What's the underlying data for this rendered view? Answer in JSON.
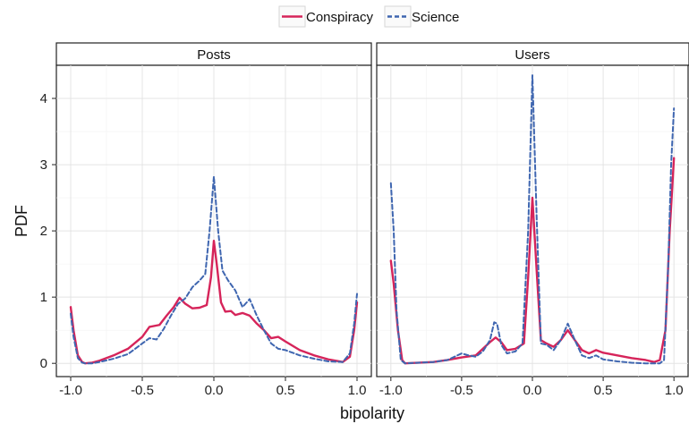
{
  "chart_data": {
    "type": "line",
    "xlabel": "bipolarity",
    "ylabel": "PDF",
    "xlim": [
      -1.1,
      1.1
    ],
    "ylim": [
      -0.2,
      4.5
    ],
    "x_ticks": [
      -1.0,
      -0.5,
      0.0,
      0.5,
      1.0
    ],
    "x_tick_labels": [
      "-1.0",
      "-0.5",
      "0.0",
      "0.5",
      "1.0"
    ],
    "y_ticks": [
      0,
      1,
      2,
      3,
      4
    ],
    "y_tick_labels": [
      "0",
      "1",
      "2",
      "3",
      "4"
    ],
    "grid": true,
    "legend": {
      "position": "top",
      "entries": [
        {
          "name": "Conspiracy",
          "color": "#d6245a",
          "style": "solid"
        },
        {
          "name": "Science",
          "color": "#3f66b0",
          "style": "dashed"
        }
      ]
    },
    "panels": [
      {
        "title": "Posts",
        "series": [
          {
            "name": "Conspiracy",
            "color": "#d6245a",
            "style": "solid",
            "points": [
              [
                -1.0,
                0.85
              ],
              [
                -0.98,
                0.5
              ],
              [
                -0.95,
                0.12
              ],
              [
                -0.92,
                0.02
              ],
              [
                -0.9,
                0.0
              ],
              [
                -0.85,
                0.01
              ],
              [
                -0.8,
                0.04
              ],
              [
                -0.7,
                0.12
              ],
              [
                -0.6,
                0.22
              ],
              [
                -0.5,
                0.4
              ],
              [
                -0.45,
                0.55
              ],
              [
                -0.38,
                0.58
              ],
              [
                -0.33,
                0.72
              ],
              [
                -0.28,
                0.85
              ],
              [
                -0.24,
                0.99
              ],
              [
                -0.2,
                0.9
              ],
              [
                -0.15,
                0.83
              ],
              [
                -0.1,
                0.84
              ],
              [
                -0.05,
                0.88
              ],
              [
                -0.02,
                1.3
              ],
              [
                0.0,
                1.85
              ],
              [
                0.02,
                1.5
              ],
              [
                0.05,
                0.92
              ],
              [
                0.08,
                0.78
              ],
              [
                0.12,
                0.79
              ],
              [
                0.15,
                0.73
              ],
              [
                0.2,
                0.76
              ],
              [
                0.25,
                0.72
              ],
              [
                0.3,
                0.6
              ],
              [
                0.35,
                0.5
              ],
              [
                0.4,
                0.38
              ],
              [
                0.45,
                0.4
              ],
              [
                0.5,
                0.33
              ],
              [
                0.6,
                0.2
              ],
              [
                0.7,
                0.12
              ],
              [
                0.8,
                0.06
              ],
              [
                0.9,
                0.02
              ],
              [
                0.95,
                0.1
              ],
              [
                0.98,
                0.5
              ],
              [
                1.0,
                0.92
              ]
            ]
          },
          {
            "name": "Science",
            "color": "#3f66b0",
            "style": "dashed",
            "points": [
              [
                -1.0,
                0.75
              ],
              [
                -0.98,
                0.4
              ],
              [
                -0.95,
                0.08
              ],
              [
                -0.92,
                0.01
              ],
              [
                -0.9,
                0.0
              ],
              [
                -0.85,
                0.0
              ],
              [
                -0.8,
                0.02
              ],
              [
                -0.7,
                0.07
              ],
              [
                -0.6,
                0.14
              ],
              [
                -0.5,
                0.3
              ],
              [
                -0.45,
                0.38
              ],
              [
                -0.4,
                0.36
              ],
              [
                -0.35,
                0.52
              ],
              [
                -0.3,
                0.72
              ],
              [
                -0.25,
                0.9
              ],
              [
                -0.2,
                0.98
              ],
              [
                -0.15,
                1.15
              ],
              [
                -0.1,
                1.25
              ],
              [
                -0.06,
                1.35
              ],
              [
                -0.03,
                2.0
              ],
              [
                0.0,
                2.82
              ],
              [
                0.03,
                2.0
              ],
              [
                0.06,
                1.4
              ],
              [
                0.1,
                1.25
              ],
              [
                0.15,
                1.1
              ],
              [
                0.2,
                0.85
              ],
              [
                0.25,
                0.97
              ],
              [
                0.3,
                0.72
              ],
              [
                0.35,
                0.5
              ],
              [
                0.4,
                0.3
              ],
              [
                0.45,
                0.22
              ],
              [
                0.5,
                0.2
              ],
              [
                0.6,
                0.12
              ],
              [
                0.7,
                0.07
              ],
              [
                0.8,
                0.03
              ],
              [
                0.9,
                0.02
              ],
              [
                0.95,
                0.15
              ],
              [
                0.98,
                0.6
              ],
              [
                1.0,
                1.05
              ]
            ]
          }
        ]
      },
      {
        "title": "Users",
        "series": [
          {
            "name": "Conspiracy",
            "color": "#d6245a",
            "style": "solid",
            "points": [
              [
                -1.0,
                1.55
              ],
              [
                -0.98,
                1.2
              ],
              [
                -0.95,
                0.5
              ],
              [
                -0.92,
                0.05
              ],
              [
                -0.9,
                0.0
              ],
              [
                -0.8,
                0.01
              ],
              [
                -0.7,
                0.02
              ],
              [
                -0.6,
                0.05
              ],
              [
                -0.5,
                0.09
              ],
              [
                -0.4,
                0.12
              ],
              [
                -0.35,
                0.22
              ],
              [
                -0.3,
                0.32
              ],
              [
                -0.26,
                0.39
              ],
              [
                -0.22,
                0.32
              ],
              [
                -0.18,
                0.2
              ],
              [
                -0.12,
                0.22
              ],
              [
                -0.06,
                0.3
              ],
              [
                -0.03,
                1.3
              ],
              [
                0.0,
                2.5
              ],
              [
                0.03,
                1.4
              ],
              [
                0.06,
                0.35
              ],
              [
                0.1,
                0.3
              ],
              [
                0.15,
                0.25
              ],
              [
                0.2,
                0.35
              ],
              [
                0.25,
                0.5
              ],
              [
                0.3,
                0.35
              ],
              [
                0.35,
                0.2
              ],
              [
                0.4,
                0.15
              ],
              [
                0.45,
                0.2
              ],
              [
                0.5,
                0.16
              ],
              [
                0.6,
                0.12
              ],
              [
                0.7,
                0.08
              ],
              [
                0.8,
                0.05
              ],
              [
                0.86,
                0.02
              ],
              [
                0.9,
                0.05
              ],
              [
                0.94,
                0.5
              ],
              [
                0.97,
                2.0
              ],
              [
                1.0,
                3.1
              ]
            ]
          },
          {
            "name": "Science",
            "color": "#3f66b0",
            "style": "dashed",
            "points": [
              [
                -1.0,
                2.72
              ],
              [
                -0.98,
                2.0
              ],
              [
                -0.96,
                0.8
              ],
              [
                -0.93,
                0.05
              ],
              [
                -0.9,
                0.0
              ],
              [
                -0.8,
                0.01
              ],
              [
                -0.7,
                0.02
              ],
              [
                -0.6,
                0.05
              ],
              [
                -0.5,
                0.15
              ],
              [
                -0.45,
                0.12
              ],
              [
                -0.4,
                0.1
              ],
              [
                -0.35,
                0.18
              ],
              [
                -0.3,
                0.35
              ],
              [
                -0.27,
                0.62
              ],
              [
                -0.25,
                0.6
              ],
              [
                -0.22,
                0.28
              ],
              [
                -0.18,
                0.15
              ],
              [
                -0.12,
                0.18
              ],
              [
                -0.07,
                0.3
              ],
              [
                -0.03,
                2.0
              ],
              [
                0.0,
                4.35
              ],
              [
                0.03,
                2.2
              ],
              [
                0.06,
                0.3
              ],
              [
                0.1,
                0.28
              ],
              [
                0.15,
                0.2
              ],
              [
                0.2,
                0.35
              ],
              [
                0.25,
                0.6
              ],
              [
                0.3,
                0.35
              ],
              [
                0.35,
                0.12
              ],
              [
                0.4,
                0.08
              ],
              [
                0.45,
                0.12
              ],
              [
                0.5,
                0.06
              ],
              [
                0.6,
                0.03
              ],
              [
                0.7,
                0.01
              ],
              [
                0.8,
                0.0
              ],
              [
                0.9,
                0.0
              ],
              [
                0.93,
                0.05
              ],
              [
                0.96,
                1.5
              ],
              [
                0.98,
                3.0
              ],
              [
                1.0,
                3.85
              ]
            ]
          }
        ]
      }
    ]
  }
}
